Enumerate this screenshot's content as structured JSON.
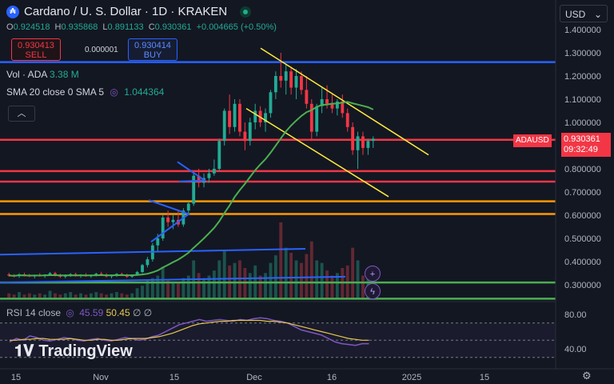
{
  "header": {
    "title": "Cardano / U. S. Dollar · 1D · KRAKEN",
    "symbol_icon": "cardano-logo",
    "ohlc": {
      "o_label": "O",
      "o": "0.924518",
      "h_label": "H",
      "h": "0.935868",
      "l_label": "L",
      "l": "0.891133",
      "c_label": "C",
      "c": "0.930361",
      "change": "+0.004665 (+0.50%)"
    }
  },
  "trade": {
    "sell_price": "0.930413",
    "sell_label": "SELL",
    "spread": "0.000001",
    "buy_price": "0.930414",
    "buy_label": "BUY"
  },
  "indicators": {
    "vol_label": "Vol · ADA",
    "vol_value": "3.38 M",
    "sma_label": "SMA 20 close 0 SMA 5",
    "sma_value": "1.044364",
    "rsi_label": "RSI 14 close",
    "rsi_value": "45.59",
    "rsi_ma_value": "50.45",
    "rsi_extra": "∅ ∅"
  },
  "currency_button": "USD",
  "price_tags": {
    "symbol": "ADAUSD",
    "price": "0.930361",
    "countdown": "09:32:49"
  },
  "branding": "TradingView",
  "colors": {
    "bull": "#22ab94",
    "bear": "#f23645",
    "sma": "#4caf50",
    "blue_line": "#2962ff",
    "red_line": "#f23645",
    "orange_line": "#ff9800",
    "yellow_line": "#ffeb3b",
    "green_line": "#4caf50",
    "rsi": "#7e57c2",
    "rsi_ma": "#e8c84a"
  },
  "chart_data": {
    "type": "candlestick",
    "y_ticks": [
      "1.400000",
      "1.300000",
      "1.200000",
      "1.100000",
      "1.000000",
      "0.800000",
      "0.700000",
      "0.600000",
      "0.500000",
      "0.400000",
      "0.300000"
    ],
    "x_ticks": [
      "15",
      "Nov",
      "15",
      "Dec",
      "16",
      "2025",
      "15"
    ],
    "ylim": [
      0.24,
      1.43
    ],
    "horizontal_levels": [
      {
        "price": 1.26,
        "color": "blue"
      },
      {
        "price": 0.925,
        "color": "red"
      },
      {
        "price": 0.79,
        "color": "red"
      },
      {
        "price": 0.745,
        "color": "red"
      },
      {
        "price": 0.66,
        "color": "orange"
      },
      {
        "price": 0.605,
        "color": "orange"
      },
      {
        "price": 0.31,
        "color": "green"
      },
      {
        "price": 0.24,
        "color": "green"
      }
    ],
    "candles": [
      [
        0.345,
        0.352,
        0.335,
        0.34
      ],
      [
        0.34,
        0.346,
        0.332,
        0.338
      ],
      [
        0.338,
        0.35,
        0.33,
        0.345
      ],
      [
        0.345,
        0.352,
        0.336,
        0.34
      ],
      [
        0.34,
        0.347,
        0.333,
        0.336
      ],
      [
        0.336,
        0.344,
        0.328,
        0.342
      ],
      [
        0.342,
        0.35,
        0.335,
        0.338
      ],
      [
        0.338,
        0.346,
        0.33,
        0.344
      ],
      [
        0.344,
        0.355,
        0.338,
        0.35
      ],
      [
        0.35,
        0.356,
        0.336,
        0.34
      ],
      [
        0.34,
        0.348,
        0.33,
        0.335
      ],
      [
        0.335,
        0.345,
        0.328,
        0.34
      ],
      [
        0.34,
        0.35,
        0.334,
        0.346
      ],
      [
        0.346,
        0.352,
        0.335,
        0.338
      ],
      [
        0.338,
        0.346,
        0.33,
        0.342
      ],
      [
        0.342,
        0.35,
        0.335,
        0.337
      ],
      [
        0.337,
        0.345,
        0.33,
        0.341
      ],
      [
        0.341,
        0.352,
        0.336,
        0.348
      ],
      [
        0.348,
        0.356,
        0.34,
        0.344
      ],
      [
        0.344,
        0.35,
        0.332,
        0.336
      ],
      [
        0.336,
        0.344,
        0.328,
        0.34
      ],
      [
        0.34,
        0.35,
        0.334,
        0.347
      ],
      [
        0.347,
        0.352,
        0.338,
        0.342
      ],
      [
        0.342,
        0.348,
        0.33,
        0.335
      ],
      [
        0.335,
        0.345,
        0.33,
        0.343
      ],
      [
        0.343,
        0.36,
        0.34,
        0.355
      ],
      [
        0.355,
        0.39,
        0.35,
        0.385
      ],
      [
        0.385,
        0.42,
        0.375,
        0.41
      ],
      [
        0.41,
        0.48,
        0.4,
        0.47
      ],
      [
        0.47,
        0.52,
        0.44,
        0.5
      ],
      [
        0.5,
        0.6,
        0.49,
        0.59
      ],
      [
        0.59,
        0.62,
        0.55,
        0.57
      ],
      [
        0.57,
        0.6,
        0.54,
        0.58
      ],
      [
        0.58,
        0.62,
        0.55,
        0.56
      ],
      [
        0.56,
        0.63,
        0.55,
        0.62
      ],
      [
        0.62,
        0.66,
        0.6,
        0.65
      ],
      [
        0.65,
        0.78,
        0.64,
        0.77
      ],
      [
        0.77,
        0.8,
        0.72,
        0.74
      ],
      [
        0.74,
        0.78,
        0.72,
        0.76
      ],
      [
        0.76,
        0.8,
        0.74,
        0.78
      ],
      [
        0.78,
        0.84,
        0.77,
        0.8
      ],
      [
        0.8,
        0.93,
        0.79,
        0.92
      ],
      [
        0.92,
        1.06,
        0.9,
        1.05
      ],
      [
        1.05,
        1.12,
        0.95,
        0.98
      ],
      [
        0.98,
        1.1,
        0.96,
        1.08
      ],
      [
        1.08,
        1.1,
        0.94,
        0.96
      ],
      [
        0.96,
        1.0,
        0.88,
        0.92
      ],
      [
        0.92,
        1.02,
        0.9,
        1.0
      ],
      [
        1.0,
        1.08,
        0.97,
        1.05
      ],
      [
        1.05,
        1.07,
        0.98,
        1.0
      ],
      [
        1.0,
        1.06,
        0.96,
        1.04
      ],
      [
        1.04,
        1.14,
        1.02,
        1.13
      ],
      [
        1.13,
        1.22,
        1.1,
        1.2
      ],
      [
        1.2,
        1.3,
        1.15,
        1.18
      ],
      [
        1.18,
        1.25,
        1.12,
        1.22
      ],
      [
        1.22,
        1.24,
        1.12,
        1.15
      ],
      [
        1.15,
        1.23,
        1.1,
        1.2
      ],
      [
        1.2,
        1.22,
        1.12,
        1.14
      ],
      [
        1.14,
        1.2,
        1.06,
        1.08
      ],
      [
        1.08,
        1.1,
        0.92,
        0.96
      ],
      [
        0.96,
        1.08,
        0.94,
        1.07
      ],
      [
        1.07,
        1.15,
        1.04,
        1.1
      ],
      [
        1.1,
        1.16,
        1.06,
        1.08
      ],
      [
        1.08,
        1.12,
        1.04,
        1.06
      ],
      [
        1.06,
        1.1,
        1.03,
        1.09
      ],
      [
        1.09,
        1.12,
        1.02,
        1.04
      ],
      [
        1.04,
        1.06,
        0.96,
        0.98
      ],
      [
        0.98,
        1.0,
        0.86,
        0.88
      ],
      [
        0.88,
        0.96,
        0.8,
        0.94
      ],
      [
        0.94,
        0.96,
        0.86,
        0.89
      ],
      [
        0.89,
        0.93,
        0.86,
        0.92
      ],
      [
        0.92,
        0.94,
        0.89,
        0.93
      ]
    ],
    "volume": [
      4,
      3,
      5,
      3,
      4,
      3,
      4,
      3,
      6,
      4,
      3,
      4,
      5,
      3,
      4,
      3,
      4,
      5,
      4,
      3,
      4,
      5,
      4,
      3,
      4,
      8,
      10,
      14,
      16,
      18,
      25,
      14,
      12,
      13,
      16,
      18,
      30,
      20,
      16,
      18,
      22,
      30,
      38,
      26,
      28,
      30,
      24,
      20,
      26,
      18,
      20,
      28,
      34,
      60,
      40,
      36,
      30,
      28,
      35,
      45,
      30,
      28,
      22,
      18,
      20,
      24,
      26,
      40,
      30,
      18,
      16,
      10
    ],
    "sma_visible_range": [
      1.0,
      1.09,
      0.33,
      0.31
    ]
  }
}
